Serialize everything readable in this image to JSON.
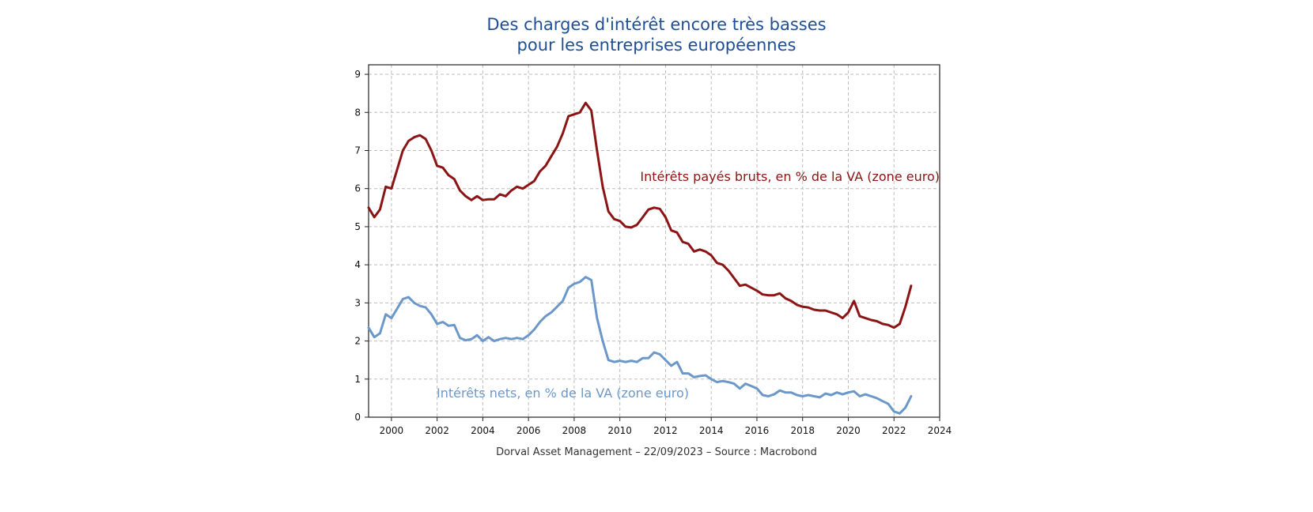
{
  "chart_data": {
    "type": "line",
    "title": "Des charges d'intérêt encore très basses",
    "subtitle": "pour les entreprises européennes",
    "xlabel": "",
    "ylabel": "",
    "xlim": [
      1999,
      2024
    ],
    "ylim": [
      0,
      9.25
    ],
    "x_ticks": [
      2000,
      2002,
      2004,
      2006,
      2008,
      2010,
      2012,
      2014,
      2016,
      2018,
      2020,
      2022,
      2024
    ],
    "y_ticks": [
      0,
      1,
      2,
      3,
      4,
      5,
      6,
      7,
      8,
      9
    ],
    "grid": true,
    "source": "Dorval Asset Management – 22/09/2023 –   Source : Macrobond",
    "series": [
      {
        "name": "Intérêts payés bruts, en % de la VA (zone euro)",
        "color": "#8b1414",
        "x": [
          1999.0,
          1999.25,
          1999.5,
          1999.75,
          2000.0,
          2000.25,
          2000.5,
          2000.75,
          2001.0,
          2001.25,
          2001.5,
          2001.75,
          2002.0,
          2002.25,
          2002.5,
          2002.75,
          2003.0,
          2003.25,
          2003.5,
          2003.75,
          2004.0,
          2004.25,
          2004.5,
          2004.75,
          2005.0,
          2005.25,
          2005.5,
          2005.75,
          2006.0,
          2006.25,
          2006.5,
          2006.75,
          2007.0,
          2007.25,
          2007.5,
          2007.75,
          2008.0,
          2008.25,
          2008.5,
          2008.75,
          2009.0,
          2009.25,
          2009.5,
          2009.75,
          2010.0,
          2010.25,
          2010.5,
          2010.75,
          2011.0,
          2011.25,
          2011.5,
          2011.75,
          2012.0,
          2012.25,
          2012.5,
          2012.75,
          2013.0,
          2013.25,
          2013.5,
          2013.75,
          2014.0,
          2014.25,
          2014.5,
          2014.75,
          2015.0,
          2015.25,
          2015.5,
          2015.75,
          2016.0,
          2016.25,
          2016.5,
          2016.75,
          2017.0,
          2017.25,
          2017.5,
          2017.75,
          2018.0,
          2018.25,
          2018.5,
          2018.75,
          2019.0,
          2019.25,
          2019.5,
          2019.75,
          2020.0,
          2020.25,
          2020.5,
          2020.75,
          2021.0,
          2021.25,
          2021.5,
          2021.75,
          2022.0,
          2022.25,
          2022.5,
          2022.75
        ],
        "values": [
          5.5,
          5.25,
          5.45,
          6.05,
          6.0,
          6.5,
          7.0,
          7.25,
          7.35,
          7.4,
          7.3,
          7.0,
          6.6,
          6.55,
          6.35,
          6.25,
          5.95,
          5.8,
          5.7,
          5.8,
          5.7,
          5.72,
          5.72,
          5.85,
          5.8,
          5.95,
          6.05,
          6.0,
          6.1,
          6.2,
          6.45,
          6.6,
          6.85,
          7.1,
          7.45,
          7.9,
          7.95,
          8.0,
          8.25,
          8.05,
          7.0,
          6.05,
          5.4,
          5.2,
          5.15,
          5.0,
          4.98,
          5.05,
          5.25,
          5.45,
          5.5,
          5.47,
          5.25,
          4.9,
          4.85,
          4.6,
          4.55,
          4.35,
          4.4,
          4.35,
          4.25,
          4.05,
          4.0,
          3.85,
          3.65,
          3.45,
          3.48,
          3.4,
          3.32,
          3.22,
          3.2,
          3.2,
          3.25,
          3.12,
          3.05,
          2.95,
          2.9,
          2.88,
          2.82,
          2.8,
          2.8,
          2.75,
          2.7,
          2.6,
          2.75,
          3.05,
          2.65,
          2.6,
          2.55,
          2.52,
          2.45,
          2.42,
          2.35,
          2.45,
          2.9,
          3.45
        ]
      },
      {
        "name": "Intérêts nets, en % de la VA (zone euro)",
        "color": "#6b98c9",
        "x": [
          1999.0,
          1999.25,
          1999.5,
          1999.75,
          2000.0,
          2000.25,
          2000.5,
          2000.75,
          2001.0,
          2001.25,
          2001.5,
          2001.75,
          2002.0,
          2002.25,
          2002.5,
          2002.75,
          2003.0,
          2003.25,
          2003.5,
          2003.75,
          2004.0,
          2004.25,
          2004.5,
          2004.75,
          2005.0,
          2005.25,
          2005.5,
          2005.75,
          2006.0,
          2006.25,
          2006.5,
          2006.75,
          2007.0,
          2007.25,
          2007.5,
          2007.75,
          2008.0,
          2008.25,
          2008.5,
          2008.75,
          2009.0,
          2009.25,
          2009.5,
          2009.75,
          2010.0,
          2010.25,
          2010.5,
          2010.75,
          2011.0,
          2011.25,
          2011.5,
          2011.75,
          2012.0,
          2012.25,
          2012.5,
          2012.75,
          2013.0,
          2013.25,
          2013.5,
          2013.75,
          2014.0,
          2014.25,
          2014.5,
          2014.75,
          2015.0,
          2015.25,
          2015.5,
          2015.75,
          2016.0,
          2016.25,
          2016.5,
          2016.75,
          2017.0,
          2017.25,
          2017.5,
          2017.75,
          2018.0,
          2018.25,
          2018.5,
          2018.75,
          2019.0,
          2019.25,
          2019.5,
          2019.75,
          2020.0,
          2020.25,
          2020.5,
          2020.75,
          2021.0,
          2021.25,
          2021.5,
          2021.75,
          2022.0,
          2022.25,
          2022.5,
          2022.75
        ],
        "values": [
          2.35,
          2.1,
          2.2,
          2.7,
          2.6,
          2.85,
          3.1,
          3.15,
          3.0,
          2.92,
          2.88,
          2.7,
          2.45,
          2.5,
          2.4,
          2.42,
          2.08,
          2.02,
          2.05,
          2.15,
          2.0,
          2.1,
          2.0,
          2.05,
          2.08,
          2.05,
          2.08,
          2.05,
          2.15,
          2.3,
          2.5,
          2.65,
          2.75,
          2.9,
          3.05,
          3.4,
          3.5,
          3.55,
          3.68,
          3.6,
          2.6,
          2.0,
          1.5,
          1.45,
          1.48,
          1.45,
          1.48,
          1.45,
          1.55,
          1.55,
          1.7,
          1.65,
          1.5,
          1.35,
          1.45,
          1.15,
          1.15,
          1.05,
          1.08,
          1.1,
          1.0,
          0.92,
          0.95,
          0.92,
          0.88,
          0.75,
          0.88,
          0.82,
          0.75,
          0.58,
          0.55,
          0.6,
          0.7,
          0.65,
          0.65,
          0.58,
          0.55,
          0.58,
          0.55,
          0.52,
          0.62,
          0.58,
          0.65,
          0.6,
          0.65,
          0.68,
          0.55,
          0.6,
          0.55,
          0.5,
          0.42,
          0.35,
          0.15,
          0.1,
          0.25,
          0.55
        ]
      }
    ],
    "annotations": [
      {
        "text": "Intérêts payés bruts, en % de la VA (zone euro)",
        "series": 0
      },
      {
        "text": "Intérêts nets, en % de la VA (zone euro)",
        "series": 1
      }
    ]
  }
}
